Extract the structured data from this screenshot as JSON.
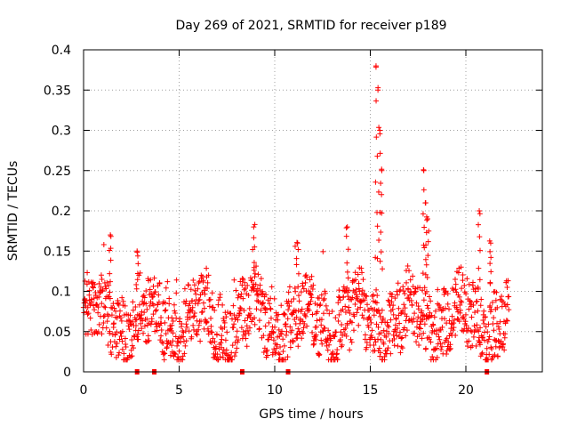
{
  "chart_data": {
    "type": "scatter",
    "title": "Day 269 of 2021, SRMTID for receiver p189",
    "xlabel": "GPS time / hours",
    "ylabel": "SRMTID / TECUs",
    "xlim": [
      0,
      24
    ],
    "ylim": [
      0,
      0.4
    ],
    "xticks": [
      0,
      5,
      10,
      15,
      20
    ],
    "xtick_labels": [
      "0",
      "5",
      "10",
      "15",
      "20"
    ],
    "yticks": [
      0,
      0.05,
      0.1,
      0.15,
      0.2,
      0.25,
      0.3,
      0.35,
      0.4
    ],
    "ytick_labels": [
      "0",
      "0.05",
      "0.1",
      "0.15",
      "0.2",
      "0.25",
      "0.3",
      "0.35",
      "0.4"
    ],
    "grid": true,
    "marker_color": "#ff0000",
    "marker": "plus",
    "series": [
      {
        "name": "SRMTID",
        "x_range": [
          0,
          22.25
        ],
        "typical_values": [
          0.03,
          0.12
        ],
        "spikes": [
          {
            "x": 1.4,
            "y": 0.17
          },
          {
            "x": 2.8,
            "y": 0.15
          },
          {
            "x": 8.9,
            "y": 0.18
          },
          {
            "x": 11.2,
            "y": 0.16
          },
          {
            "x": 13.8,
            "y": 0.18
          },
          {
            "x": 15.3,
            "y": 0.38
          },
          {
            "x": 15.4,
            "y": 0.35
          },
          {
            "x": 15.5,
            "y": 0.3
          },
          {
            "x": 15.6,
            "y": 0.25
          },
          {
            "x": 17.8,
            "y": 0.25
          },
          {
            "x": 17.9,
            "y": 0.21
          },
          {
            "x": 18.0,
            "y": 0.19
          },
          {
            "x": 20.7,
            "y": 0.2
          },
          {
            "x": 21.3,
            "y": 0.16
          }
        ]
      }
    ],
    "gap_markers_x": [
      2.8,
      3.7,
      8.3,
      10.7,
      21.1
    ]
  }
}
